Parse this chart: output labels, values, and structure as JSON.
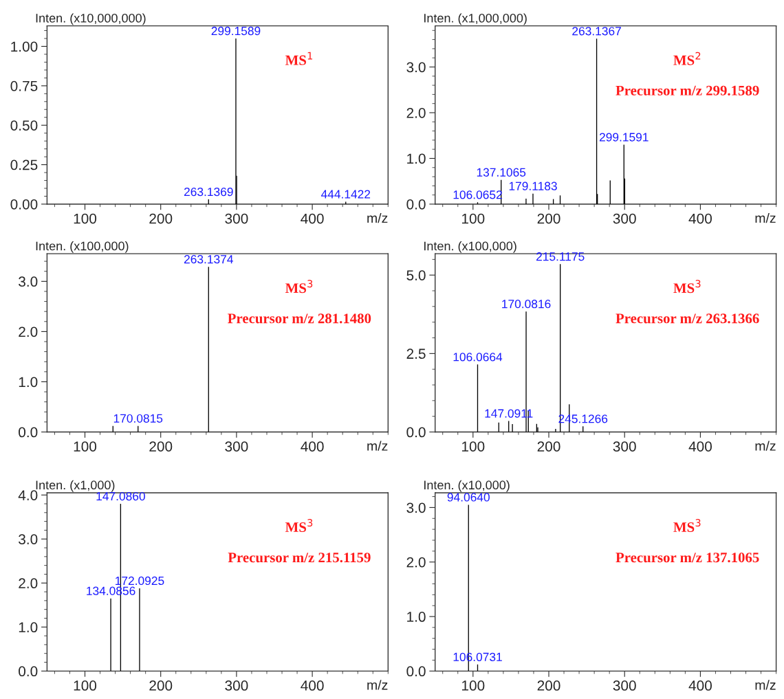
{
  "chart_data": [
    {
      "type": "bar",
      "xlabel": "m/z",
      "ylabel": "Inten. (x10,000,000)",
      "xlim": [
        50,
        500
      ],
      "xticks": [
        100,
        200,
        300,
        400
      ],
      "ylim": [
        0,
        1.13
      ],
      "yticks": [
        {
          "value": 0,
          "label": "0.00"
        },
        {
          "value": 0.25,
          "label": "0.25"
        },
        {
          "value": 0.5,
          "label": "0.50"
        },
        {
          "value": 0.75,
          "label": "0.75"
        },
        {
          "value": 1,
          "label": "1.00"
        }
      ],
      "grid": false,
      "legend": false,
      "series": [
        {
          "color": "#000000",
          "x": [
            263.1369,
            299.1589,
            300.16,
            444.1422
          ],
          "values": [
            0.03,
            1.05,
            0.18,
            0.015
          ]
        }
      ],
      "annotations": [
        {
          "text": "299.1589",
          "x": 299.1589,
          "y": 1.05
        },
        {
          "text": "263.1369",
          "x": 263.1369,
          "y": 0.03
        },
        {
          "text": "444.1422",
          "x": 444.1422,
          "y": 0.015
        },
        "MS$^{1}$"
      ]
    },
    {
      "type": "bar",
      "xlabel": "m/z",
      "ylabel": "Inten. (x1,000,000)",
      "xlim": [
        50,
        500
      ],
      "xticks": [
        100,
        200,
        300,
        400
      ],
      "ylim": [
        0,
        3.9
      ],
      "yticks": [
        {
          "value": 0,
          "label": "0.0"
        },
        {
          "value": 1,
          "label": "1.0"
        },
        {
          "value": 2,
          "label": "2.0"
        },
        {
          "value": 3,
          "label": "3.0"
        }
      ],
      "grid": false,
      "legend": false,
      "series": [
        {
          "color": "#000000",
          "x": [
            106.0652,
            137.1065,
            170,
            179.1183,
            206,
            215,
            263.1367,
            264.14,
            281,
            299.1591,
            300.16
          ],
          "values": [
            0.04,
            0.53,
            0.12,
            0.23,
            0.11,
            0.19,
            3.62,
            0.22,
            0.52,
            1.3,
            0.56
          ]
        }
      ],
      "annotations": [
        {
          "text": "263.1367",
          "x": 263.1367,
          "y": 3.62
        },
        {
          "text": "299.1591",
          "x": 299.1591,
          "y": 1.3
        },
        {
          "text": "137.1065",
          "x": 137.1065,
          "y": 0.53
        },
        {
          "text": "179.1183",
          "x": 179.1183,
          "y": 0.23
        },
        {
          "text": "106.0652",
          "x": 106.0652,
          "y": 0.04
        },
        "MS$^{2}$",
        "Precursor m/z 299.1589"
      ]
    },
    {
      "type": "bar",
      "xlabel": "m/z",
      "ylabel": "Inten. (x100,000)",
      "xlim": [
        50,
        500
      ],
      "xticks": [
        100,
        200,
        300,
        400
      ],
      "ylim": [
        0,
        3.55
      ],
      "yticks": [
        {
          "value": 0,
          "label": "0.0"
        },
        {
          "value": 1,
          "label": "1.0"
        },
        {
          "value": 2,
          "label": "2.0"
        },
        {
          "value": 3,
          "label": "3.0"
        }
      ],
      "grid": false,
      "legend": false,
      "series": [
        {
          "color": "#000000",
          "x": [
            137,
            170.0815,
            263.1374
          ],
          "values": [
            0.12,
            0.12,
            3.29
          ]
        }
      ],
      "annotations": [
        {
          "text": "263.1374",
          "x": 263.1374,
          "y": 3.29
        },
        {
          "text": "170.0815",
          "x": 170.0815,
          "y": 0.12
        },
        "MS$^{3}$",
        "Precursor m/z 281.1480"
      ]
    },
    {
      "type": "bar",
      "xlabel": "m/z",
      "ylabel": "Inten. (x100,000)",
      "xlim": [
        50,
        500
      ],
      "xticks": [
        100,
        200,
        300,
        400
      ],
      "ylim": [
        0,
        5.68
      ],
      "yticks": [
        {
          "value": 0,
          "label": "0.0"
        },
        {
          "value": 2.5,
          "label": "2.5"
        },
        {
          "value": 5,
          "label": "5.0"
        }
      ],
      "grid": false,
      "legend": false,
      "series": [
        {
          "color": "#000000",
          "x": [
            106.0664,
            134,
            147.0911,
            152,
            170.0816,
            173,
            184,
            185.5,
            209,
            215.1175,
            227,
            245.1266
          ],
          "values": [
            2.15,
            0.3,
            0.35,
            0.25,
            3.84,
            0.69,
            0.26,
            0.15,
            0.1,
            5.35,
            0.88,
            0.18
          ]
        }
      ],
      "annotations": [
        {
          "text": "215.1175",
          "x": 215.1175,
          "y": 5.35
        },
        {
          "text": "170.0816",
          "x": 170.0816,
          "y": 3.84
        },
        {
          "text": "106.0664",
          "x": 106.0664,
          "y": 2.15
        },
        {
          "text": "147.0911",
          "x": 147.0911,
          "y": 0.35
        },
        {
          "text": "245.1266",
          "x": 245.1266,
          "y": 0.18
        },
        "MS$^{3}$",
        "Precursor m/z 263.1366"
      ]
    },
    {
      "type": "bar",
      "xlabel": "m/z",
      "ylabel": "Inten. (x1,000)",
      "xlim": [
        50,
        500
      ],
      "xticks": [
        100,
        200,
        300,
        400
      ],
      "ylim": [
        0,
        4.05
      ],
      "yticks": [
        {
          "value": 0,
          "label": "0.0"
        },
        {
          "value": 1,
          "label": "1.0"
        },
        {
          "value": 2,
          "label": "2.0"
        },
        {
          "value": 3,
          "label": "3.0"
        },
        {
          "value": 4,
          "label": "4.0"
        }
      ],
      "grid": false,
      "legend": false,
      "series": [
        {
          "color": "#000000",
          "x": [
            134.0856,
            147.086,
            172.0925
          ],
          "values": [
            1.65,
            3.8,
            1.88
          ]
        }
      ],
      "annotations": [
        {
          "text": "147.0860",
          "x": 147.086,
          "y": 3.8
        },
        {
          "text": "172.0925",
          "x": 172.0925,
          "y": 1.88
        },
        {
          "text": "134.0856",
          "x": 134.0856,
          "y": 1.65
        },
        "MS$^{3}$",
        "Precursor m/z 215.1159"
      ]
    },
    {
      "type": "bar",
      "xlabel": "m/z",
      "ylabel": "Inten. (x10,000)",
      "xlim": [
        50,
        500
      ],
      "xticks": [
        100,
        200,
        300,
        400
      ],
      "ylim": [
        0,
        3.27
      ],
      "yticks": [
        {
          "value": 0,
          "label": "0.0"
        },
        {
          "value": 1,
          "label": "1.0"
        },
        {
          "value": 2,
          "label": "2.0"
        },
        {
          "value": 3,
          "label": "3.0"
        }
      ],
      "grid": false,
      "legend": false,
      "series": [
        {
          "color": "#000000",
          "x": [
            94.064,
            106.0731
          ],
          "values": [
            3.05,
            0.12
          ]
        }
      ],
      "annotations": [
        {
          "text": "94.0640",
          "x": 94.064,
          "y": 3.05
        },
        {
          "text": "106.0731",
          "x": 106.0731,
          "y": 0.12
        },
        "MS$^{3}$",
        "Precursor m/z 137.1065"
      ]
    }
  ]
}
